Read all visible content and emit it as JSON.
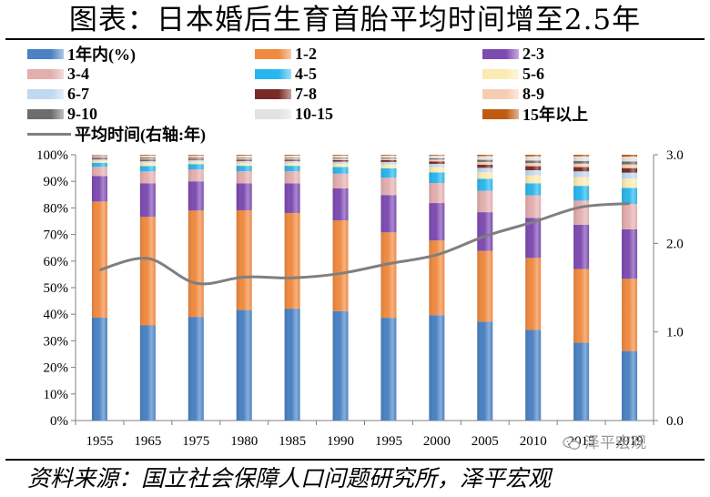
{
  "title": "图表：日本婚后生育首胎平均时间增至2.5年",
  "source": "资料来源：国立社会保障人口问题研究所，泽平宏观",
  "watermark": "泽平宏观",
  "colors": {
    "line": "#7f7f7f",
    "axis": "#808080",
    "grid": "#d0d0d0"
  },
  "chart_data": {
    "type": "bar",
    "stacked": true,
    "categories": [
      "1955",
      "1965",
      "1975",
      "1980",
      "1985",
      "1990",
      "1995",
      "2000",
      "2005",
      "2010",
      "2015",
      "2019"
    ],
    "ylim": [
      0,
      100
    ],
    "y_ticks": [
      "0%",
      "10%",
      "20%",
      "30%",
      "40%",
      "50%",
      "60%",
      "70%",
      "80%",
      "90%",
      "100%"
    ],
    "y2lim": [
      0,
      3
    ],
    "y2_ticks": [
      "0.0",
      "1.0",
      "2.0",
      "3.0"
    ],
    "legend_position": "top",
    "series": [
      {
        "name": "1年内(%)",
        "color": "#4a82c4",
        "values": [
          38.5,
          35.5,
          39,
          41,
          41.5,
          41,
          38.5,
          39.5,
          37,
          34,
          29,
          26
        ]
      },
      {
        "name": "1-2",
        "color": "#f08a40",
        "values": [
          43.5,
          40.5,
          40,
          37,
          35.5,
          34,
          32,
          28,
          26.5,
          27,
          27.5,
          27
        ]
      },
      {
        "name": "2-3",
        "color": "#7e4bb2",
        "values": [
          9.5,
          12.5,
          11,
          10,
          11,
          12,
          14,
          14,
          14.5,
          15,
          16.5,
          18.5
        ]
      },
      {
        "name": "3-4",
        "color": "#e3aeae",
        "values": [
          3.5,
          4.5,
          4.5,
          4.5,
          4.5,
          5.5,
          6.5,
          7.5,
          8,
          8.5,
          9,
          9.5
        ]
      },
      {
        "name": "4-5",
        "color": "#29b6ee",
        "values": [
          1.5,
          2,
          2,
          2,
          2,
          2.5,
          3.5,
          4,
          4.5,
          4.5,
          5.5,
          6
        ]
      },
      {
        "name": "5-6",
        "color": "#fbeab2",
        "values": [
          0.8,
          1.2,
          1,
          1.1,
          1.1,
          1.2,
          1.5,
          2,
          2.5,
          3,
          3.3,
          3.5
        ]
      },
      {
        "name": "6-7",
        "color": "#bed9f0",
        "values": [
          0.5,
          0.7,
          0.6,
          0.7,
          0.7,
          0.8,
          0.9,
          1.2,
          1.6,
          1.9,
          2.1,
          2.2
        ]
      },
      {
        "name": "7-8",
        "color": "#7a2a26",
        "values": [
          0.4,
          0.5,
          0.4,
          0.5,
          0.5,
          0.6,
          0.7,
          0.9,
          1.2,
          1.5,
          1.6,
          1.7
        ]
      },
      {
        "name": "8-9",
        "color": "#f6cdb3",
        "values": [
          0.3,
          0.4,
          0.3,
          0.4,
          0.4,
          0.5,
          0.5,
          0.7,
          1,
          1.2,
          1.3,
          1.4
        ]
      },
      {
        "name": "9-10",
        "color": "#6d6d6d",
        "values": [
          0.3,
          0.4,
          0.3,
          0.3,
          0.3,
          0.4,
          0.4,
          0.5,
          0.8,
          0.9,
          1,
          1.1
        ]
      },
      {
        "name": "10-15",
        "color": "#e2e2e2",
        "values": [
          0.5,
          0.7,
          0.6,
          0.8,
          0.8,
          0.8,
          0.8,
          1,
          1.4,
          1.6,
          1.7,
          1.8
        ]
      },
      {
        "name": "15年以上",
        "color": "#c05a10",
        "values": [
          0.2,
          0.3,
          0.3,
          0.3,
          0.3,
          0.3,
          0.3,
          0.3,
          0.5,
          0.6,
          0.6,
          0.7
        ]
      }
    ],
    "line_series": {
      "name": "平均时间(右轴:年)",
      "axis": "right",
      "values": [
        1.7,
        1.83,
        1.55,
        1.62,
        1.61,
        1.66,
        1.77,
        1.87,
        2.08,
        2.24,
        2.41,
        2.45
      ]
    }
  }
}
